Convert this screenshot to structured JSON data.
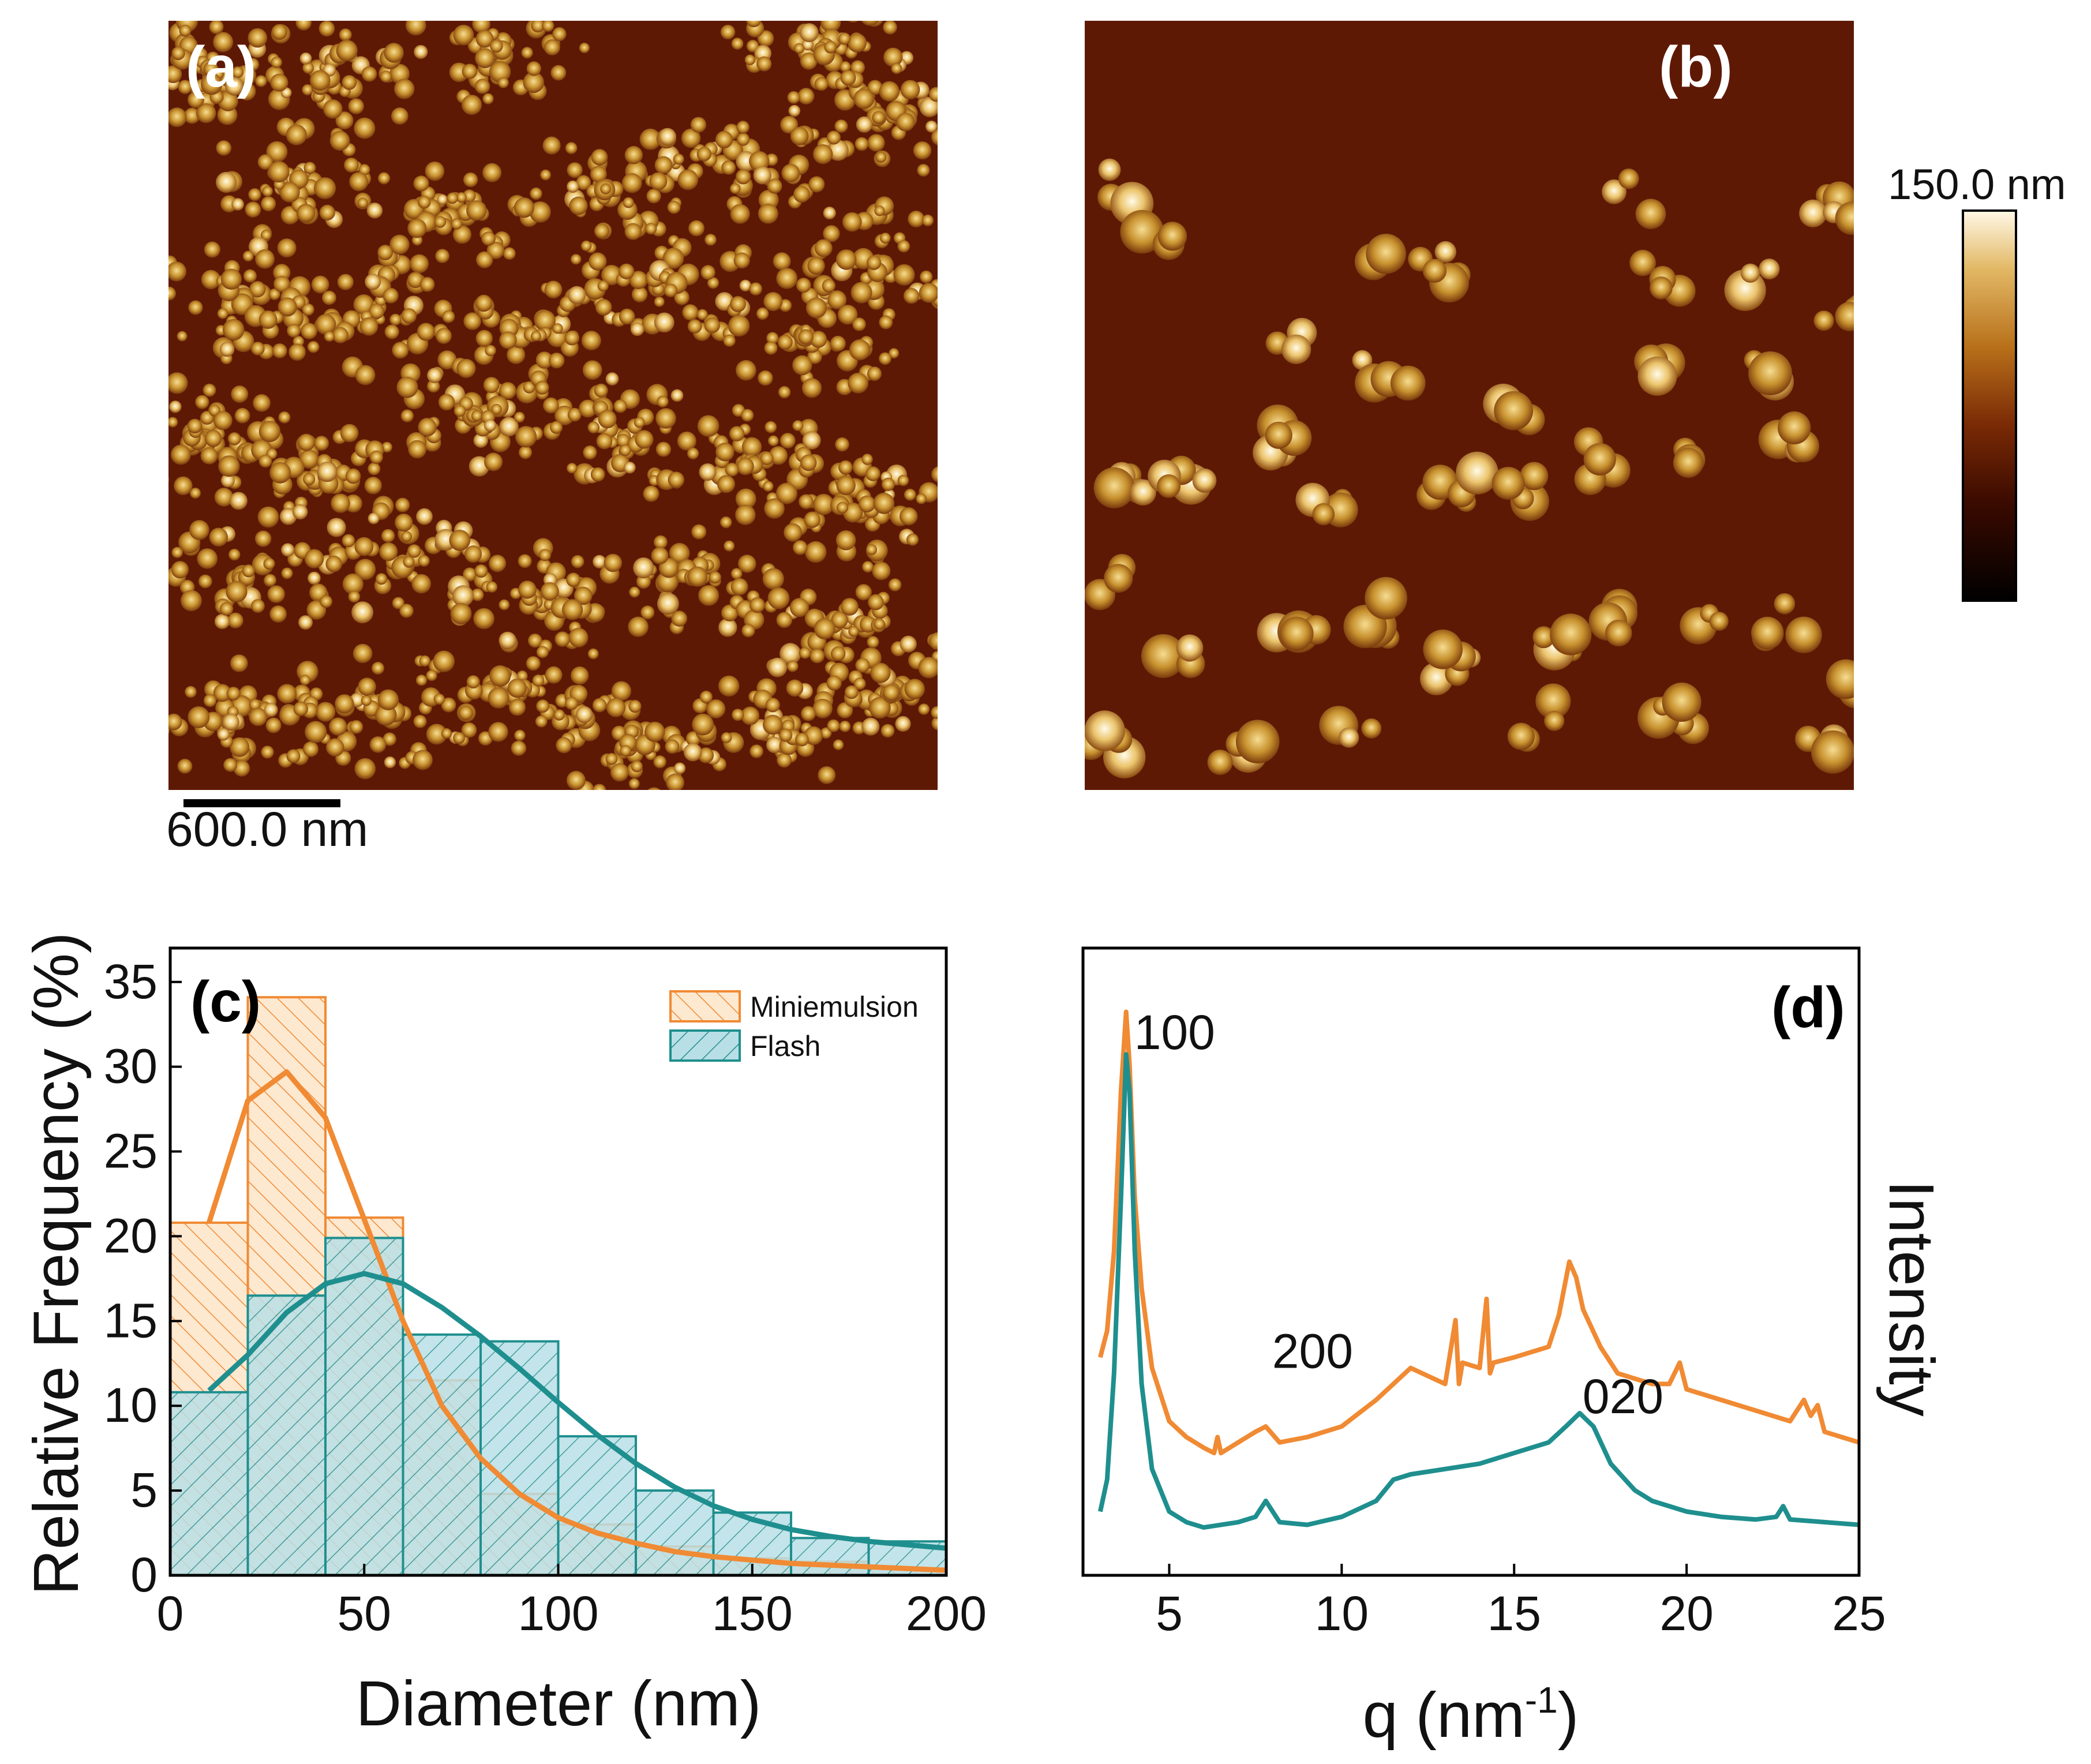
{
  "figure": {
    "panel_a": {
      "label": "(a)",
      "scale_bar": "600.0 nm"
    },
    "panel_b": {
      "label": "(b)"
    },
    "colorbar": {
      "max_label": "150.0 nm",
      "colors": [
        "#000000",
        "#3a0a00",
        "#7a2a05",
        "#b8701a",
        "#e2b865",
        "#fff8e6"
      ]
    },
    "afm_colors": {
      "background": "#5e1905",
      "particle": "#c08a2c",
      "bright": "#f2d687"
    }
  },
  "chart_data": [
    {
      "type": "bar",
      "panel_label": "(c)",
      "xlabel": "Diameter (nm)",
      "ylabel": "Relative Frequency (%)",
      "xlim": [
        0,
        200
      ],
      "ylim": [
        0,
        37
      ],
      "xticks": [
        "0",
        "50",
        "100",
        "150",
        "200"
      ],
      "yticks": [
        "0",
        "5",
        "10",
        "15",
        "20",
        "25",
        "30",
        "35"
      ],
      "bin_edges": [
        0,
        20,
        40,
        60,
        80,
        100,
        120,
        140,
        160,
        180,
        200
      ],
      "series": [
        {
          "name": "Miniemulsion",
          "color": "#f08a33",
          "values": [
            20.8,
            34.1,
            21.1,
            11.5,
            4.8,
            3.0,
            1.7,
            1.0,
            0.8,
            0.4
          ],
          "fit": {
            "x": [
              10,
              20,
              30,
              40,
              50,
              60,
              70,
              80,
              90,
              100,
              110,
              120,
              130,
              140,
              150,
              160,
              170,
              180,
              190,
              200
            ],
            "y": [
              20.8,
              28.0,
              29.7,
              27.0,
              21.0,
              15.0,
              10.0,
              6.9,
              4.8,
              3.4,
              2.5,
              1.9,
              1.4,
              1.1,
              0.9,
              0.7,
              0.6,
              0.5,
              0.4,
              0.3
            ]
          }
        },
        {
          "name": "Flash",
          "color": "#1e8f8e",
          "values": [
            10.8,
            16.5,
            19.9,
            14.2,
            13.8,
            8.2,
            5.0,
            3.7,
            2.2,
            2.0
          ],
          "fit": {
            "x": [
              10,
              20,
              30,
              40,
              50,
              60,
              70,
              80,
              90,
              100,
              110,
              120,
              130,
              140,
              150,
              160,
              170,
              180,
              190,
              200
            ],
            "y": [
              10.9,
              13.0,
              15.5,
              17.2,
              17.8,
              17.2,
              15.8,
              14.1,
              12.2,
              10.2,
              8.3,
              6.6,
              5.2,
              4.1,
              3.3,
              2.7,
              2.3,
              2.0,
              1.8,
              1.6
            ]
          }
        }
      ],
      "legend": [
        "Miniemulsion",
        "Flash"
      ],
      "legend_position": "top-right"
    },
    {
      "type": "line",
      "panel_label": "(d)",
      "xlabel_main": "q (nm",
      "xlabel_sup": "-1",
      "xlabel_close": ")",
      "ylabel": "Intensity",
      "xlim": [
        2.5,
        25
      ],
      "xticks": [
        "5",
        "10",
        "15",
        "20",
        "25"
      ],
      "annotations": [
        {
          "text": "100",
          "x": 3.9,
          "y": 9.3
        },
        {
          "text": "200",
          "x": 7.9,
          "y": 3.3
        },
        {
          "text": "020",
          "x": 16.9,
          "y": 2.45
        }
      ],
      "series": [
        {
          "name": "Miniemulsion",
          "color": "#f08a33",
          "x": [
            3.0,
            3.2,
            3.4,
            3.6,
            3.75,
            3.85,
            4.0,
            4.2,
            4.5,
            5.0,
            5.5,
            6.0,
            6.3,
            6.4,
            6.5,
            7.0,
            7.5,
            7.8,
            8.2,
            9,
            10,
            11,
            12,
            13,
            13.3,
            13.4,
            13.5,
            14,
            14.2,
            14.3,
            14.4,
            15,
            15.5,
            16,
            16.3,
            16.6,
            16.8,
            17,
            17.5,
            18,
            18.5,
            19,
            19.5,
            19.8,
            20,
            21,
            22,
            23,
            23.4,
            23.6,
            23.8,
            24,
            24.5,
            25
          ],
          "y": [
            3.5,
            4.0,
            5.5,
            8.5,
            10.0,
            9.0,
            6.5,
            4.8,
            3.3,
            2.3,
            2.0,
            1.8,
            1.7,
            2.0,
            1.7,
            1.9,
            2.1,
            2.2,
            1.9,
            2.0,
            2.2,
            2.7,
            3.3,
            3.0,
            4.2,
            3.0,
            3.4,
            3.3,
            4.6,
            3.2,
            3.4,
            3.5,
            3.6,
            3.7,
            4.3,
            5.3,
            5.0,
            4.4,
            3.7,
            3.2,
            3.1,
            3.0,
            3.0,
            3.4,
            2.9,
            2.7,
            2.5,
            2.3,
            2.7,
            2.4,
            2.6,
            2.1,
            2.0,
            1.9
          ]
        },
        {
          "name": "Flash",
          "color": "#1e8f8e",
          "x": [
            3.0,
            3.2,
            3.4,
            3.6,
            3.75,
            3.85,
            4.0,
            4.2,
            4.5,
            5.0,
            5.5,
            6.0,
            7.0,
            7.5,
            7.8,
            8.2,
            9,
            10,
            11,
            11.5,
            12,
            13,
            14,
            15,
            16,
            16.5,
            16.9,
            17.3,
            17.8,
            18.5,
            19,
            20,
            21,
            22,
            22.6,
            22.8,
            23,
            24,
            25
          ],
          "y": [
            0.6,
            1.2,
            3.2,
            6.5,
            9.2,
            8.5,
            5.5,
            3.0,
            1.4,
            0.6,
            0.4,
            0.3,
            0.4,
            0.5,
            0.8,
            0.4,
            0.35,
            0.5,
            0.8,
            1.2,
            1.3,
            1.4,
            1.5,
            1.7,
            1.9,
            2.2,
            2.45,
            2.2,
            1.5,
            1.0,
            0.8,
            0.6,
            0.5,
            0.45,
            0.5,
            0.7,
            0.45,
            0.4,
            0.35
          ]
        }
      ]
    }
  ]
}
